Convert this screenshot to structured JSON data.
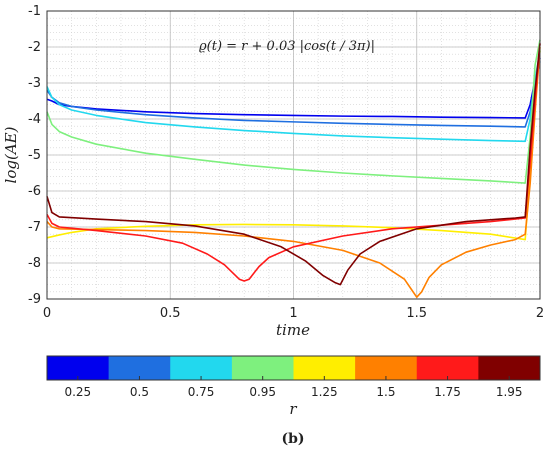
{
  "chart_data": {
    "type": "line",
    "annotation": "ϱ(t) = r + 0.03 |cos(t / 3π)|",
    "xlabel": "time",
    "ylabel": "log(AE)",
    "xlim": [
      0,
      2
    ],
    "ylim": [
      -9,
      -1
    ],
    "xticks": [
      "0",
      "0.5",
      "1",
      "1.5",
      "2"
    ],
    "yticks": [
      "-1",
      "-2",
      "-3",
      "-4",
      "-5",
      "-6",
      "-7",
      "-8",
      "-9"
    ],
    "grid": "major and minor (dotted)",
    "colorbar": {
      "label": "r",
      "ticks": [
        "0.25",
        "0.5",
        "0.75",
        "0.95",
        "1.25",
        "1.5",
        "1.75",
        "1.95"
      ]
    },
    "series": [
      {
        "r": 0.25,
        "color": "#0000ee",
        "x": [
          0,
          0.02,
          0.05,
          0.1,
          0.2,
          0.4,
          0.6,
          0.8,
          1.0,
          1.2,
          1.4,
          1.6,
          1.8,
          1.94,
          1.96,
          1.98,
          2.0
        ],
        "y": [
          -3.45,
          -3.5,
          -3.6,
          -3.65,
          -3.72,
          -3.8,
          -3.85,
          -3.88,
          -3.9,
          -3.92,
          -3.93,
          -3.95,
          -3.96,
          -3.97,
          -3.6,
          -2.9,
          -2.3
        ]
      },
      {
        "r": 0.5,
        "color": "#1f6fe0",
        "x": [
          0,
          0.02,
          0.05,
          0.1,
          0.2,
          0.4,
          0.6,
          0.8,
          1.0,
          1.2,
          1.4,
          1.6,
          1.8,
          1.94,
          1.96,
          1.98,
          2.0
        ],
        "y": [
          -3.2,
          -3.4,
          -3.55,
          -3.65,
          -3.75,
          -3.88,
          -3.97,
          -4.04,
          -4.08,
          -4.12,
          -4.15,
          -4.18,
          -4.2,
          -4.22,
          -3.8,
          -3.0,
          -2.4
        ]
      },
      {
        "r": 0.75,
        "color": "#22d8ee",
        "x": [
          0,
          0.02,
          0.05,
          0.1,
          0.2,
          0.4,
          0.6,
          0.8,
          1.0,
          1.2,
          1.4,
          1.6,
          1.8,
          1.94,
          1.96,
          1.98,
          2.0
        ],
        "y": [
          -3.1,
          -3.4,
          -3.6,
          -3.75,
          -3.9,
          -4.1,
          -4.22,
          -4.32,
          -4.4,
          -4.47,
          -4.52,
          -4.56,
          -4.6,
          -4.62,
          -4.0,
          -2.9,
          -2.1
        ]
      },
      {
        "r": 0.95,
        "color": "#7ef07e",
        "x": [
          0,
          0.02,
          0.05,
          0.1,
          0.2,
          0.4,
          0.6,
          0.8,
          1.0,
          1.2,
          1.4,
          1.6,
          1.8,
          1.94,
          1.96,
          1.98,
          2.0
        ],
        "y": [
          -3.8,
          -4.15,
          -4.35,
          -4.5,
          -4.7,
          -4.95,
          -5.12,
          -5.28,
          -5.4,
          -5.5,
          -5.58,
          -5.65,
          -5.72,
          -5.78,
          -4.5,
          -2.5,
          -1.8
        ]
      },
      {
        "r": 1.25,
        "color": "#ffee00",
        "x": [
          0,
          0.05,
          0.1,
          0.2,
          0.4,
          0.6,
          0.8,
          1.0,
          1.2,
          1.4,
          1.6,
          1.8,
          1.94,
          1.96,
          1.98,
          2.0
        ],
        "y": [
          -7.3,
          -7.22,
          -7.15,
          -7.05,
          -6.98,
          -6.94,
          -6.93,
          -6.94,
          -6.97,
          -7.02,
          -7.1,
          -7.2,
          -7.35,
          -5.5,
          -3.5,
          -2.1
        ]
      },
      {
        "r": 1.5,
        "color": "#ff8000",
        "x": [
          0,
          0.02,
          0.05,
          0.2,
          0.4,
          0.6,
          0.8,
          1.0,
          1.2,
          1.35,
          1.45,
          1.48,
          1.5,
          1.52,
          1.55,
          1.6,
          1.7,
          1.8,
          1.9,
          1.94,
          1.96,
          1.98,
          2.0
        ],
        "y": [
          -6.85,
          -7.0,
          -7.05,
          -7.07,
          -7.1,
          -7.15,
          -7.25,
          -7.4,
          -7.65,
          -8.0,
          -8.45,
          -8.75,
          -8.95,
          -8.8,
          -8.4,
          -8.05,
          -7.7,
          -7.5,
          -7.35,
          -7.2,
          -5.8,
          -3.8,
          -2.0
        ]
      },
      {
        "r": 1.75,
        "color": "#ff1a1a",
        "x": [
          0,
          0.02,
          0.05,
          0.2,
          0.4,
          0.55,
          0.65,
          0.72,
          0.78,
          0.8,
          0.82,
          0.86,
          0.9,
          1.0,
          1.2,
          1.4,
          1.6,
          1.8,
          1.94,
          1.96,
          1.98,
          2.0
        ],
        "y": [
          -6.65,
          -6.9,
          -7.0,
          -7.1,
          -7.25,
          -7.45,
          -7.75,
          -8.05,
          -8.45,
          -8.5,
          -8.45,
          -8.1,
          -7.85,
          -7.55,
          -7.25,
          -7.05,
          -6.95,
          -6.85,
          -6.75,
          -5.2,
          -3.5,
          -1.9
        ]
      },
      {
        "r": 1.95,
        "color": "#800000",
        "x": [
          0,
          0.02,
          0.05,
          0.2,
          0.4,
          0.6,
          0.8,
          0.95,
          1.05,
          1.12,
          1.17,
          1.19,
          1.22,
          1.27,
          1.35,
          1.5,
          1.7,
          1.9,
          1.94,
          1.96,
          1.98,
          2.0
        ],
        "y": [
          -6.15,
          -6.6,
          -6.72,
          -6.78,
          -6.85,
          -6.97,
          -7.2,
          -7.55,
          -7.95,
          -8.35,
          -8.55,
          -8.6,
          -8.2,
          -7.75,
          -7.4,
          -7.05,
          -6.85,
          -6.75,
          -6.72,
          -4.8,
          -3.2,
          -1.9
        ]
      }
    ]
  },
  "panel_label": "(b)"
}
